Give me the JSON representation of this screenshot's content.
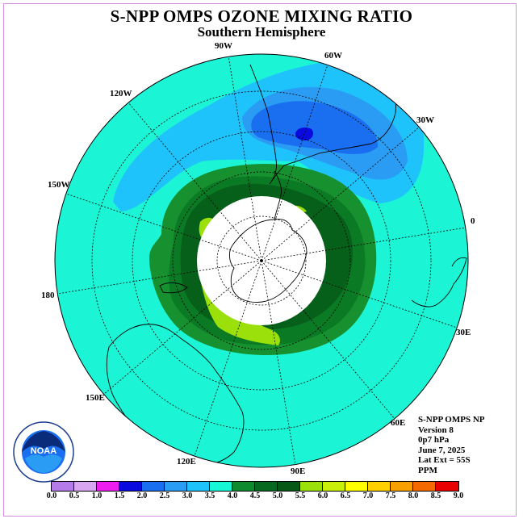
{
  "title": "S-NPP OMPS OZONE MIXING RATIO",
  "subtitle": "Southern Hemisphere",
  "longitude_labels": {
    "w90": "90W",
    "w60": "60W",
    "w30": "30W",
    "w120": "120W",
    "w150": "150W",
    "e0": "0",
    "w180": "180",
    "e30": "30E",
    "e150": "150E",
    "e60": "60E",
    "e120": "120E",
    "e90": "90E"
  },
  "info": {
    "product": "S-NPP OMPS NP",
    "version": "Version 8",
    "level": "0p7 hPa",
    "date": "June 7, 2025",
    "lat_ext": "Lat Ext = 55S",
    "units": "PPM"
  },
  "logo_text": "NOAA",
  "colorbar": {
    "ticks": [
      "0.0",
      "0.5",
      "1.0",
      "1.5",
      "2.0",
      "2.5",
      "3.0",
      "3.5",
      "4.0",
      "4.5",
      "5.0",
      "5.5",
      "6.0",
      "6.5",
      "7.0",
      "7.5",
      "8.0",
      "8.5",
      "9.0"
    ],
    "colors": [
      "#b57be8",
      "#d9a6f2",
      "#ee1fee",
      "#0a0adf",
      "#1a6ff0",
      "#2a9cf3",
      "#1fc3fb",
      "#16f7d6",
      "#0f8a2e",
      "#07691f",
      "#075816",
      "#9be00a",
      "#c8ef0a",
      "#ffff00",
      "#ffd000",
      "#f8a000",
      "#f56a00",
      "#e90000",
      "#7a4f30"
    ]
  },
  "map_colors": {
    "background": "#1cf5d5",
    "blue_light": "#1fc3fb",
    "blue_mid": "#2a9cf3",
    "blue_dark": "#1a6ff0",
    "blue_core": "#0a0adf",
    "green_light": "#17902f",
    "green_mid": "#0b7a25",
    "green_dark": "#06601a",
    "yellowgreen": "#9be00a",
    "polar_cap": "#ffffff"
  }
}
